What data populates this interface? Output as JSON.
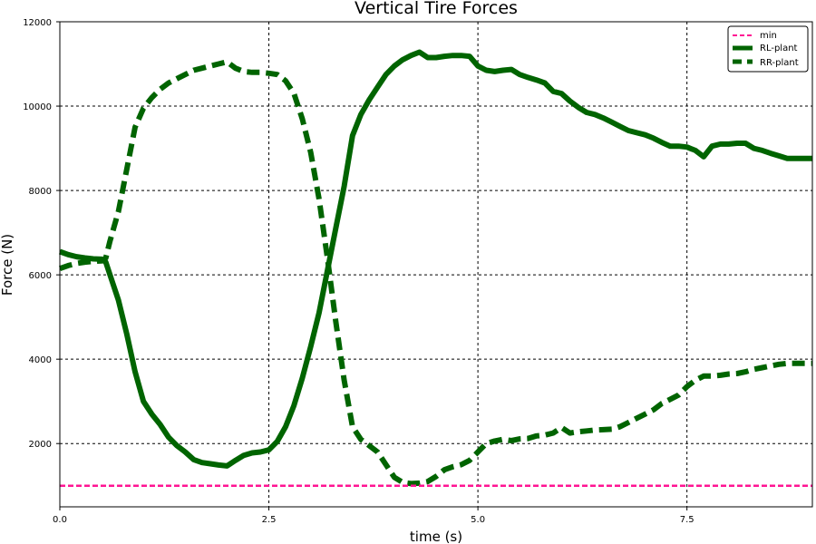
{
  "chart_data": {
    "type": "line",
    "title": "Vertical Tire Forces",
    "xlabel": "time (s)",
    "ylabel": "Force (N)",
    "xlim": [
      0,
      9
    ],
    "ylim": [
      500,
      12000
    ],
    "xticks": [
      0,
      2.5,
      5,
      7.5
    ],
    "xtick_labels": [
      "0.0",
      "2.5",
      "5.0",
      "7.5"
    ],
    "yticks": [
      2000,
      4000,
      6000,
      8000,
      10000,
      12000
    ],
    "ytick_labels": [
      "2000",
      "4000",
      "6000",
      "8000",
      "10000",
      "12000"
    ],
    "grid": true,
    "legend_position": "top-right",
    "series": [
      {
        "name": "min",
        "color": "#ff1493",
        "style": "dashed-thin",
        "x": [
          0,
          9
        ],
        "y": [
          1000,
          1000
        ]
      },
      {
        "name": "RL-plant",
        "color": "#006400",
        "style": "solid",
        "x": [
          0,
          0.1,
          0.2,
          0.3,
          0.4,
          0.5,
          0.55,
          0.6,
          0.7,
          0.8,
          0.9,
          1.0,
          1.1,
          1.2,
          1.3,
          1.4,
          1.5,
          1.6,
          1.7,
          1.8,
          1.9,
          2.0,
          2.1,
          2.2,
          2.3,
          2.4,
          2.5,
          2.6,
          2.7,
          2.8,
          2.9,
          3.0,
          3.1,
          3.2,
          3.3,
          3.4,
          3.5,
          3.6,
          3.7,
          3.8,
          3.9,
          4.0,
          4.1,
          4.2,
          4.3,
          4.4,
          4.5,
          4.6,
          4.7,
          4.8,
          4.9,
          5.0,
          5.1,
          5.2,
          5.3,
          5.4,
          5.5,
          5.6,
          5.7,
          5.8,
          5.9,
          6.0,
          6.1,
          6.2,
          6.3,
          6.4,
          6.5,
          6.6,
          6.7,
          6.8,
          6.9,
          7.0,
          7.1,
          7.2,
          7.3,
          7.4,
          7.5,
          7.6,
          7.7,
          7.8,
          7.9,
          8.0,
          8.1,
          8.2,
          8.3,
          8.4,
          8.5,
          8.6,
          8.7,
          8.8,
          8.9,
          9.0
        ],
        "y": [
          6550,
          6480,
          6430,
          6400,
          6380,
          6370,
          6300,
          6000,
          5400,
          4600,
          3700,
          3000,
          2700,
          2450,
          2150,
          1950,
          1800,
          1620,
          1550,
          1520,
          1490,
          1470,
          1600,
          1720,
          1780,
          1800,
          1850,
          2050,
          2400,
          2900,
          3550,
          4300,
          5100,
          6100,
          7100,
          8100,
          9300,
          9800,
          10150,
          10450,
          10750,
          10950,
          11100,
          11200,
          11280,
          11150,
          11150,
          11180,
          11200,
          11200,
          11180,
          10950,
          10850,
          10820,
          10850,
          10870,
          10750,
          10680,
          10620,
          10550,
          10350,
          10300,
          10120,
          9970,
          9850,
          9800,
          9720,
          9620,
          9520,
          9420,
          9370,
          9320,
          9240,
          9140,
          9050,
          9050,
          9030,
          8950,
          8800,
          9050,
          9100,
          9100,
          9120,
          9120,
          9000,
          8950,
          8880,
          8820,
          8760,
          8760,
          8760,
          8760
        ]
      },
      {
        "name": "RR-plant",
        "color": "#006400",
        "style": "dashed",
        "x": [
          0,
          0.1,
          0.2,
          0.3,
          0.4,
          0.5,
          0.55,
          0.6,
          0.7,
          0.8,
          0.9,
          1.0,
          1.1,
          1.2,
          1.3,
          1.4,
          1.5,
          1.6,
          1.7,
          1.8,
          1.9,
          2.0,
          2.1,
          2.2,
          2.3,
          2.4,
          2.5,
          2.6,
          2.7,
          2.8,
          2.9,
          3.0,
          3.1,
          3.2,
          3.3,
          3.4,
          3.5,
          3.6,
          3.7,
          3.8,
          3.9,
          4.0,
          4.1,
          4.2,
          4.3,
          4.4,
          4.5,
          4.6,
          4.7,
          4.8,
          4.9,
          5.0,
          5.1,
          5.2,
          5.3,
          5.4,
          5.5,
          5.6,
          5.7,
          5.8,
          5.9,
          6.0,
          6.1,
          6.2,
          6.3,
          6.4,
          6.5,
          6.6,
          6.7,
          6.8,
          6.9,
          7.0,
          7.1,
          7.2,
          7.3,
          7.4,
          7.5,
          7.6,
          7.7,
          7.8,
          7.9,
          8.0,
          8.1,
          8.2,
          8.3,
          8.4,
          8.5,
          8.6,
          8.7,
          8.8,
          8.9,
          9.0
        ],
        "y": [
          6150,
          6220,
          6270,
          6300,
          6320,
          6330,
          6400,
          6800,
          7500,
          8500,
          9500,
          9950,
          10200,
          10400,
          10550,
          10650,
          10750,
          10850,
          10900,
          10950,
          11000,
          11050,
          10900,
          10820,
          10800,
          10800,
          10780,
          10750,
          10600,
          10300,
          9700,
          8900,
          7800,
          6400,
          4900,
          3500,
          2400,
          2100,
          1950,
          1800,
          1500,
          1200,
          1080,
          1050,
          1060,
          1100,
          1220,
          1380,
          1450,
          1500,
          1600,
          1800,
          2000,
          2060,
          2100,
          2070,
          2110,
          2120,
          2180,
          2200,
          2250,
          2380,
          2250,
          2280,
          2300,
          2320,
          2330,
          2340,
          2400,
          2500,
          2600,
          2700,
          2800,
          2950,
          3050,
          3150,
          3350,
          3500,
          3600,
          3600,
          3620,
          3650,
          3660,
          3700,
          3760,
          3800,
          3840,
          3880,
          3900,
          3900,
          3900,
          3900
        ]
      }
    ]
  }
}
